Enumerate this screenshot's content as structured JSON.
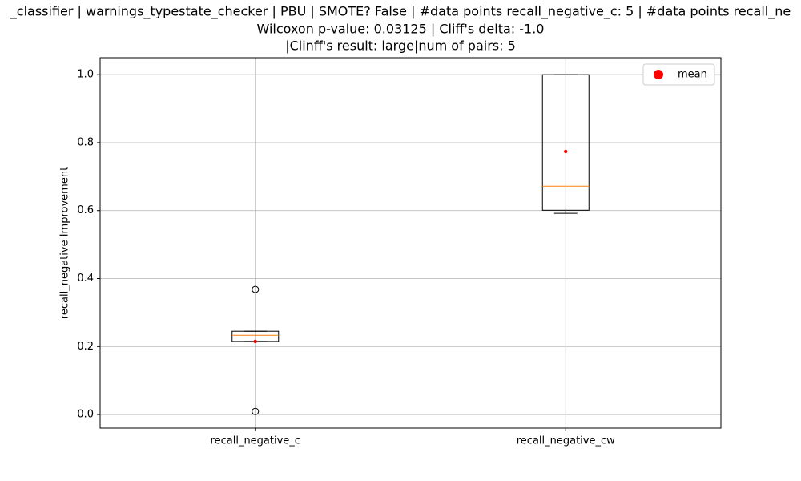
{
  "chart_data": {
    "type": "box",
    "title": [
      "_classifier | warnings_typestate_checker | PBU | SMOTE? False | #data points recall_negative_c: 5 | #data points recall_ne",
      "Wilcoxon p-value: 0.03125 | Cliff's delta: -1.0",
      "|Clinff's result: large|num of pairs: 5"
    ],
    "ylabel": "recall_negative Improvement",
    "categories": [
      "recall_negative_c",
      "recall_negative_cw"
    ],
    "series": [
      {
        "whislo": 0.215,
        "q1": 0.215,
        "med": 0.233,
        "q3": 0.245,
        "whishi": 0.245,
        "mean": 0.215,
        "fliers": [
          0.368,
          0.009
        ]
      },
      {
        "whislo": 0.592,
        "q1": 0.601,
        "med": 0.672,
        "q3": 1.0,
        "whishi": 1.0,
        "mean": 0.774,
        "fliers": []
      }
    ],
    "box_color": "#000000",
    "median_color": "#ff7f0e",
    "mean_color": "#ff0000",
    "legend": {
      "labels": [
        "mean"
      ],
      "loc": "upper right"
    },
    "ylim": [
      -0.04,
      1.05
    ],
    "yticks": [
      {
        "value": 0,
        "label": "0.0"
      },
      0.2,
      0.4,
      0.6,
      0.8,
      {
        "value": 1,
        "label": "1.0"
      }
    ],
    "grid": true
  }
}
